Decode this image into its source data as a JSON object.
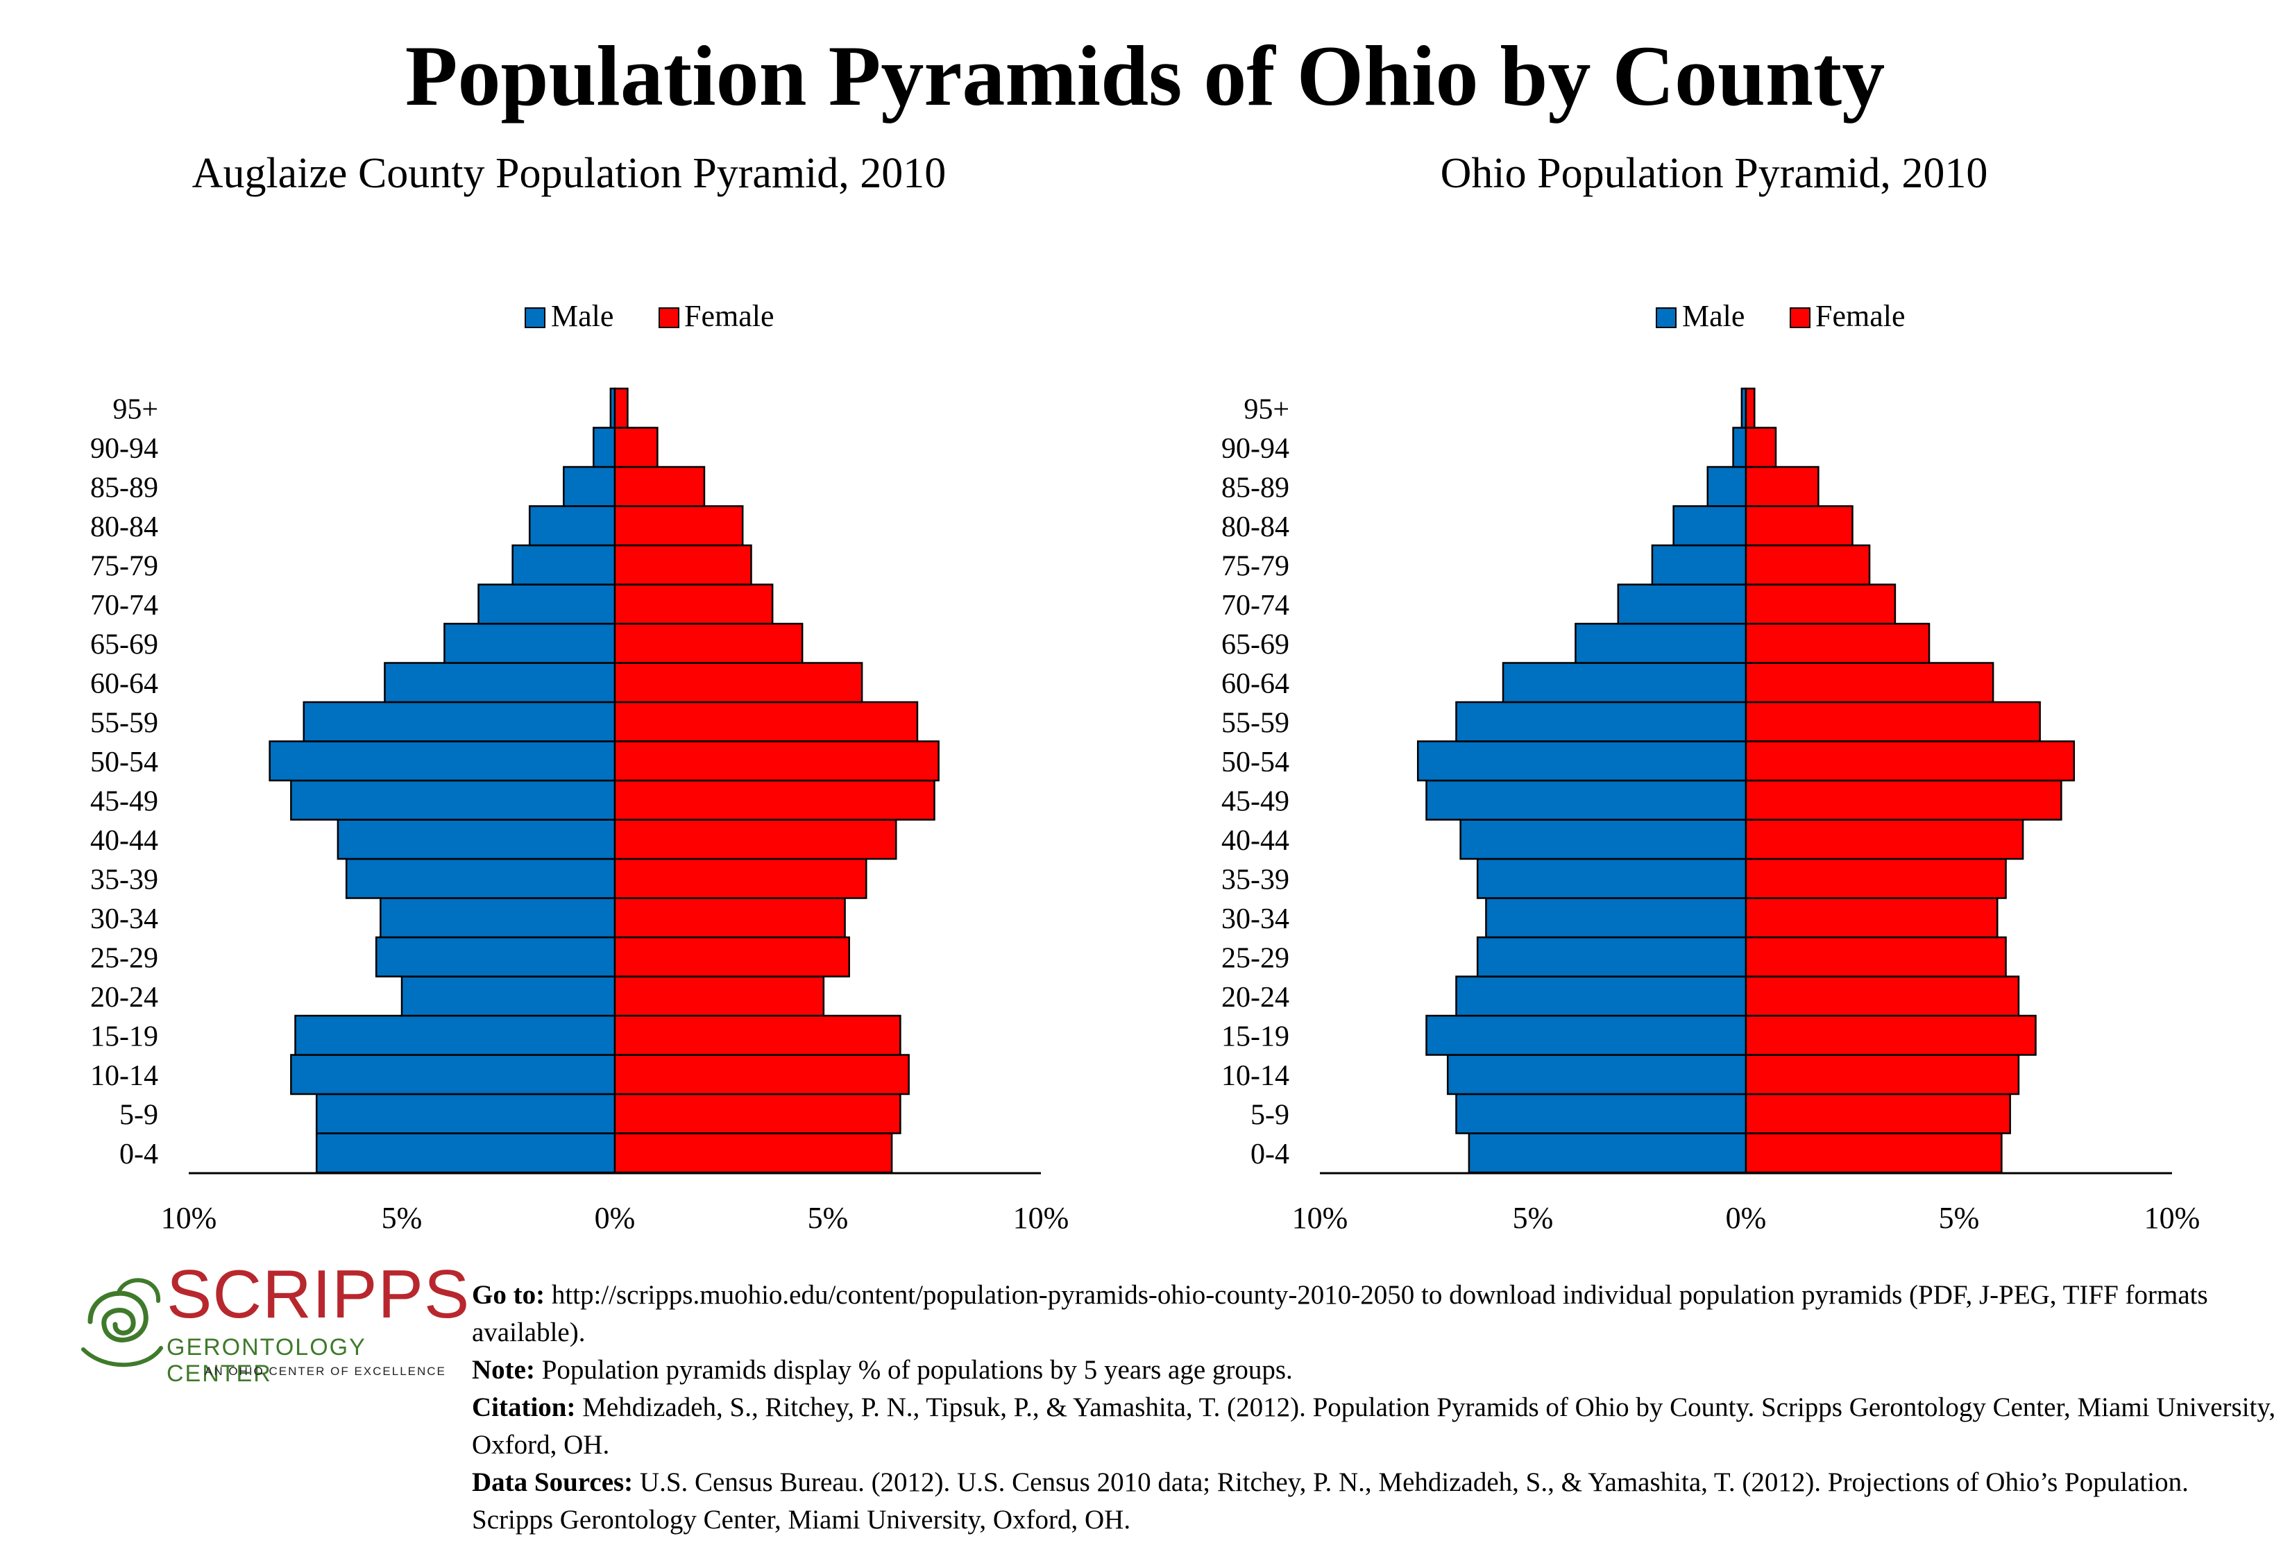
{
  "main_title": "Population Pyramids of Ohio by County",
  "colors": {
    "male": "#0070c0",
    "female": "#ff0000"
  },
  "chart_data": [
    {
      "type": "bar",
      "orientation": "horizontal-pyramid",
      "title": "Auglaize County Population Pyramid, 2010",
      "legend_position": "top-center",
      "categories": [
        "0-4",
        "5-9",
        "10-14",
        "15-19",
        "20-24",
        "25-29",
        "30-34",
        "35-39",
        "40-44",
        "45-49",
        "50-54",
        "55-59",
        "60-64",
        "65-69",
        "70-74",
        "75-79",
        "80-84",
        "85-89",
        "90-94",
        "95+"
      ],
      "series": [
        {
          "name": "Male",
          "values": [
            7.0,
            7.0,
            7.6,
            7.5,
            5.0,
            5.6,
            5.5,
            6.3,
            6.5,
            7.6,
            8.1,
            7.3,
            5.4,
            4.0,
            3.2,
            2.4,
            2.0,
            1.2,
            0.5,
            0.1
          ]
        },
        {
          "name": "Female",
          "values": [
            6.5,
            6.7,
            6.9,
            6.7,
            4.9,
            5.5,
            5.4,
            5.9,
            6.6,
            7.5,
            7.6,
            7.1,
            5.8,
            4.4,
            3.7,
            3.2,
            3.0,
            2.1,
            1.0,
            0.3
          ]
        }
      ],
      "xlim": [
        -10,
        10
      ],
      "xticks": [
        "10%",
        "5%",
        "0%",
        "5%",
        "10%"
      ],
      "grid": false
    },
    {
      "type": "bar",
      "orientation": "horizontal-pyramid",
      "title": "Ohio Population Pyramid, 2010",
      "legend_position": "top-center",
      "categories": [
        "0-4",
        "5-9",
        "10-14",
        "15-19",
        "20-24",
        "25-29",
        "30-34",
        "35-39",
        "40-44",
        "45-49",
        "50-54",
        "55-59",
        "60-64",
        "65-69",
        "70-74",
        "75-79",
        "80-84",
        "85-89",
        "90-94",
        "95+"
      ],
      "series": [
        {
          "name": "Male",
          "values": [
            6.5,
            6.8,
            7.0,
            7.5,
            6.8,
            6.3,
            6.1,
            6.3,
            6.7,
            7.5,
            7.7,
            6.8,
            5.7,
            4.0,
            3.0,
            2.2,
            1.7,
            0.9,
            0.3,
            0.1
          ]
        },
        {
          "name": "Female",
          "values": [
            6.0,
            6.2,
            6.4,
            6.8,
            6.4,
            6.1,
            5.9,
            6.1,
            6.5,
            7.4,
            7.7,
            6.9,
            5.8,
            4.3,
            3.5,
            2.9,
            2.5,
            1.7,
            0.7,
            0.2
          ]
        }
      ],
      "xlim": [
        -10,
        10
      ],
      "xticks": [
        "10%",
        "5%",
        "0%",
        "5%",
        "10%"
      ],
      "grid": false
    }
  ],
  "logo": {
    "word": "SCRIPPS",
    "subtitle": "GERONTOLOGY CENTER",
    "tagline": "AN OHIO CENTER OF EXCELLENCE"
  },
  "footnotes": [
    {
      "label": "Go to:",
      "text": " http://scripps.muohio.edu/content/population-pyramids-ohio-county-2010-2050 to download individual population pyramids (PDF, J-PEG, TIFF formats available)."
    },
    {
      "label": "Note:",
      "text": " Population pyramids display % of populations by 5 years age groups."
    },
    {
      "label": "Citation:",
      "text": " Mehdizadeh, S., Ritchey, P. N., Tipsuk, P., & Yamashita, T. (2012). Population Pyramids of Ohio by County. Scripps Gerontology Center, Miami University, Oxford, OH."
    },
    {
      "label": "Data Sources:",
      "text": " U.S. Census Bureau. (2012). U.S. Census 2010 data; Ritchey, P. N., Mehdizadeh, S., & Yamashita, T. (2012). Projections of Ohio’s Population. Scripps Gerontology Center, Miami University, Oxford, OH."
    }
  ]
}
